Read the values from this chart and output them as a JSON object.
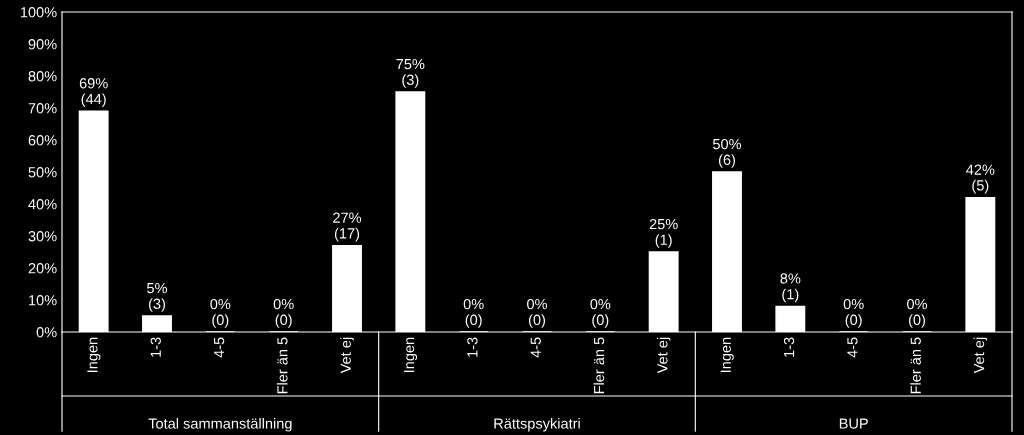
{
  "chart_data": {
    "type": "bar",
    "categories": [
      "Ingen",
      "1-3",
      "4-5",
      "Fler än 5",
      "Vet ej",
      "Ingen",
      "1-3",
      "4-5",
      "Fler än 5",
      "Vet ej",
      "Ingen",
      "1-3",
      "4-5",
      "Fler än 5",
      "Vet ej"
    ],
    "values": [
      69,
      5,
      0,
      0,
      27,
      75,
      0,
      0,
      0,
      25,
      50,
      8,
      0,
      0,
      42
    ],
    "value_labels": [
      "69%\n(44)",
      "5%\n(3)",
      "0%\n(0)",
      "0%\n(0)",
      "27%\n(17)",
      "75%\n(3)",
      "0%\n(0)",
      "0%\n(0)",
      "0%\n(0)",
      "25%\n(1)",
      "50%\n(6)",
      "8%\n(1)",
      "0%\n(0)",
      "0%\n(0)",
      "42%\n(5)"
    ],
    "color": "#ffffff",
    "ylim": [
      0,
      100
    ],
    "yticks": [
      {
        "value": 0,
        "label": "0%"
      },
      {
        "value": 10,
        "label": "10%"
      },
      {
        "value": 20,
        "label": "20%"
      },
      {
        "value": 30,
        "label": "30%"
      },
      {
        "value": 40,
        "label": "40%"
      },
      {
        "value": 50,
        "label": "50%"
      },
      {
        "value": 60,
        "label": "60%"
      },
      {
        "value": 70,
        "label": "70%"
      },
      {
        "value": 80,
        "label": "80%"
      },
      {
        "value": 90,
        "label": "90%"
      },
      {
        "value": 100,
        "label": "100%"
      }
    ],
    "grid": false,
    "annotations": [
      "Total sammanställning",
      "Rättspsykiatri",
      "BUP"
    ]
  }
}
